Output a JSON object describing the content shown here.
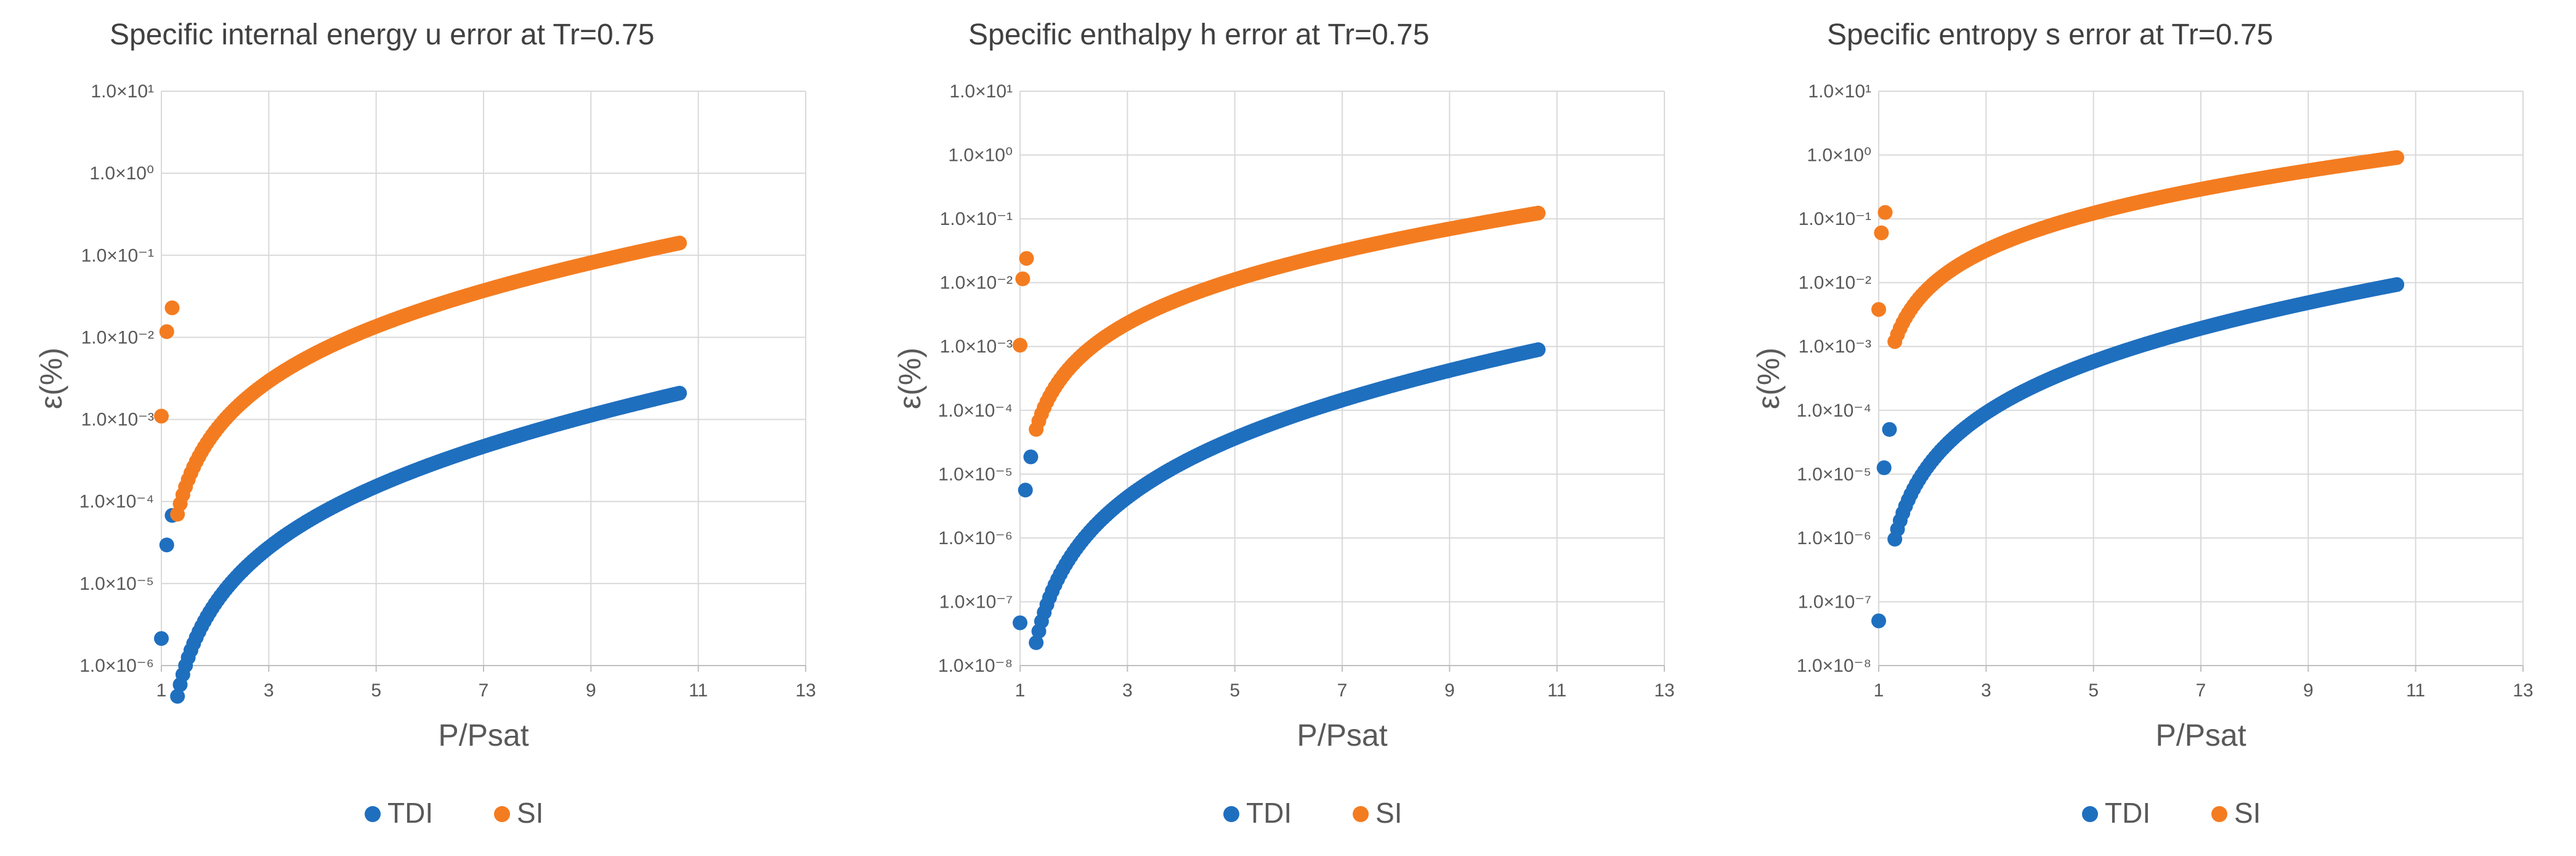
{
  "chart_data": [
    {
      "type": "scatter",
      "title": "Specific internal energy u error at Tr=0.75",
      "xlabel": "P/Psat",
      "ylabel": "ε(%)",
      "yscale": "log",
      "xlim": [
        1,
        13
      ],
      "xticks": [
        "1",
        "3",
        "5",
        "7",
        "9",
        "11",
        "13"
      ],
      "ylim_exp": [
        -6,
        1
      ],
      "yticks": [
        "1.0×10⁻⁶",
        "1.0×10⁻⁵",
        "1.0×10⁻⁴",
        "1.0×10⁻³",
        "1.0×10⁻²",
        "1.0×10⁻¹",
        "1.0×10⁰",
        "1.0×10¹"
      ],
      "series": [
        {
          "name": "TDI",
          "color": "#1f6fbf",
          "curve": {
            "a": -2.68,
            "b": 2.66,
            "c": 0.22,
            "d": 1.0
          },
          "first_points": [
            [
              1.0,
              -5.67
            ],
            [
              1.1,
              -4.53
            ],
            [
              1.2,
              -4.17
            ]
          ]
        },
        {
          "name": "SI",
          "color": "#f47c20",
          "curve": {
            "a": -0.85,
            "b": 2.38,
            "c": 0.22,
            "d": 1.0
          },
          "first_points": [
            [
              1.0,
              -2.96
            ],
            [
              1.1,
              -1.93
            ],
            [
              1.2,
              -1.64
            ]
          ]
        }
      ]
    },
    {
      "type": "scatter",
      "title": "Specific enthalpy h error at Tr=0.75",
      "xlabel": "P/Psat",
      "ylabel": "ε(%)",
      "yscale": "log",
      "xlim": [
        1,
        13
      ],
      "xticks": [
        "1",
        "3",
        "5",
        "7",
        "9",
        "11",
        "13"
      ],
      "ylim_exp": [
        -8,
        1
      ],
      "yticks": [
        "1.0×10⁻⁸",
        "1.0×10⁻⁷",
        "1.0×10⁻⁶",
        "1.0×10⁻⁵",
        "1.0×10⁻⁴",
        "1.0×10⁻³",
        "1.0×10⁻²",
        "1.0×10⁻¹",
        "1.0×10⁰",
        "1.0×10¹"
      ],
      "series": [
        {
          "name": "TDI",
          "color": "#1f6fbf",
          "curve": {
            "a": -3.05,
            "b": 3.28,
            "c": 0.2,
            "d": 1.0
          },
          "first_points": [
            [
              1.0,
              -7.33
            ],
            [
              1.1,
              -5.25
            ],
            [
              1.2,
              -4.73
            ]
          ]
        },
        {
          "name": "SI",
          "color": "#f47c20",
          "curve": {
            "a": -0.91,
            "b": 2.44,
            "c": 0.22,
            "d": 1.0
          },
          "first_points": [
            [
              1.0,
              -2.98
            ],
            [
              1.05,
              -1.94
            ],
            [
              1.12,
              -1.62
            ]
          ]
        }
      ]
    },
    {
      "type": "scatter",
      "title": "Specific entropy s error at Tr=0.75",
      "xlabel": "P/Psat",
      "ylabel": "ε(%)",
      "yscale": "log",
      "xlim": [
        1,
        13
      ],
      "xticks": [
        "1",
        "3",
        "5",
        "7",
        "9",
        "11",
        "13"
      ],
      "ylim_exp": [
        -8,
        1
      ],
      "yticks": [
        "1.0×10⁻⁸",
        "1.0×10⁻⁷",
        "1.0×10⁻⁶",
        "1.0×10⁻⁵",
        "1.0×10⁻⁴",
        "1.0×10⁻³",
        "1.0×10⁻²",
        "1.0×10⁻¹",
        "1.0×10⁰",
        "1.0×10¹"
      ],
      "series": [
        {
          "name": "TDI",
          "color": "#1f6fbf",
          "curve": {
            "a": -2.03,
            "b": 2.85,
            "c": 0.2,
            "d": 1.0
          },
          "first_points": [
            [
              1.0,
              -7.3
            ],
            [
              1.1,
              -4.9
            ],
            [
              1.2,
              -4.3
            ]
          ]
        },
        {
          "name": "SI",
          "color": "#f47c20",
          "curve": {
            "a": -0.04,
            "b": 2.06,
            "c": 0.2,
            "d": 1.0
          },
          "first_points": [
            [
              1.0,
              -2.42
            ],
            [
              1.05,
              -1.22
            ],
            [
              1.12,
              -0.9
            ]
          ]
        }
      ]
    }
  ]
}
